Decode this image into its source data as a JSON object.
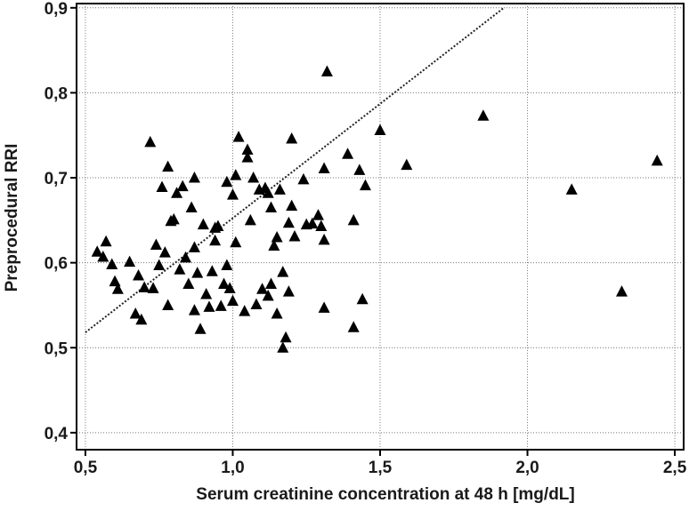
{
  "chart_data": {
    "type": "scatter",
    "title": "",
    "xlabel": "Serum creatinine concentration at 48 h [mg/dL]",
    "ylabel": "Preprocedural RRI",
    "xlim": [
      0.47,
      2.53
    ],
    "ylim": [
      0.38,
      0.905
    ],
    "x_ticks": [
      "0,5",
      "1,0",
      "1,5",
      "2,0",
      "2,5"
    ],
    "y_ticks": [
      "0,4",
      "0,5",
      "0,6",
      "0,7",
      "0,8",
      "0,9"
    ],
    "x_tick_values": [
      0.5,
      1.0,
      1.5,
      2.0,
      2.5
    ],
    "y_tick_values": [
      0.4,
      0.5,
      0.6,
      0.7,
      0.8,
      0.9
    ],
    "grid": true,
    "marker": "triangle",
    "marker_color": "#000000",
    "trendline": {
      "style": "dotted",
      "x": [
        0.5,
        1.92
      ],
      "y": [
        0.518,
        0.9
      ]
    },
    "points": [
      [
        0.54,
        0.613
      ],
      [
        0.56,
        0.607
      ],
      [
        0.57,
        0.625
      ],
      [
        0.59,
        0.598
      ],
      [
        0.6,
        0.578
      ],
      [
        0.61,
        0.569
      ],
      [
        0.65,
        0.601
      ],
      [
        0.67,
        0.54
      ],
      [
        0.68,
        0.585
      ],
      [
        0.69,
        0.533
      ],
      [
        0.7,
        0.571
      ],
      [
        0.72,
        0.742
      ],
      [
        0.73,
        0.57
      ],
      [
        0.74,
        0.621
      ],
      [
        0.75,
        0.597
      ],
      [
        0.76,
        0.689
      ],
      [
        0.77,
        0.612
      ],
      [
        0.78,
        0.55
      ],
      [
        0.78,
        0.713
      ],
      [
        0.79,
        0.649
      ],
      [
        0.8,
        0.651
      ],
      [
        0.81,
        0.682
      ],
      [
        0.82,
        0.592
      ],
      [
        0.83,
        0.69
      ],
      [
        0.84,
        0.606
      ],
      [
        0.85,
        0.575
      ],
      [
        0.86,
        0.665
      ],
      [
        0.87,
        0.618
      ],
      [
        0.87,
        0.7
      ],
      [
        0.87,
        0.544
      ],
      [
        0.88,
        0.588
      ],
      [
        0.89,
        0.522
      ],
      [
        0.9,
        0.645
      ],
      [
        0.91,
        0.563
      ],
      [
        0.92,
        0.548
      ],
      [
        0.93,
        0.59
      ],
      [
        0.94,
        0.626
      ],
      [
        0.94,
        0.641
      ],
      [
        0.95,
        0.643
      ],
      [
        0.96,
        0.549
      ],
      [
        0.97,
        0.575
      ],
      [
        0.98,
        0.597
      ],
      [
        0.98,
        0.695
      ],
      [
        0.99,
        0.57
      ],
      [
        1.0,
        0.68
      ],
      [
        1.0,
        0.555
      ],
      [
        1.01,
        0.624
      ],
      [
        1.01,
        0.703
      ],
      [
        1.02,
        0.748
      ],
      [
        1.04,
        0.543
      ],
      [
        1.05,
        0.724
      ],
      [
        1.05,
        0.733
      ],
      [
        1.06,
        0.65
      ],
      [
        1.07,
        0.7
      ],
      [
        1.08,
        0.551
      ],
      [
        1.09,
        0.686
      ],
      [
        1.1,
        0.569
      ],
      [
        1.11,
        0.688
      ],
      [
        1.12,
        0.561
      ],
      [
        1.12,
        0.682
      ],
      [
        1.13,
        0.575
      ],
      [
        1.13,
        0.665
      ],
      [
        1.14,
        0.62
      ],
      [
        1.15,
        0.63
      ],
      [
        1.15,
        0.54
      ],
      [
        1.16,
        0.686
      ],
      [
        1.17,
        0.5
      ],
      [
        1.17,
        0.589
      ],
      [
        1.18,
        0.512
      ],
      [
        1.19,
        0.566
      ],
      [
        1.19,
        0.647
      ],
      [
        1.2,
        0.667
      ],
      [
        1.2,
        0.746
      ],
      [
        1.21,
        0.631
      ],
      [
        1.24,
        0.698
      ],
      [
        1.25,
        0.645
      ],
      [
        1.27,
        0.646
      ],
      [
        1.29,
        0.656
      ],
      [
        1.3,
        0.643
      ],
      [
        1.31,
        0.627
      ],
      [
        1.31,
        0.547
      ],
      [
        1.31,
        0.711
      ],
      [
        1.32,
        0.825
      ],
      [
        1.39,
        0.728
      ],
      [
        1.41,
        0.524
      ],
      [
        1.41,
        0.65
      ],
      [
        1.43,
        0.709
      ],
      [
        1.44,
        0.557
      ],
      [
        1.45,
        0.691
      ],
      [
        1.5,
        0.756
      ],
      [
        1.59,
        0.715
      ],
      [
        1.85,
        0.773
      ],
      [
        2.15,
        0.686
      ],
      [
        2.32,
        0.566
      ],
      [
        2.44,
        0.72
      ]
    ]
  }
}
